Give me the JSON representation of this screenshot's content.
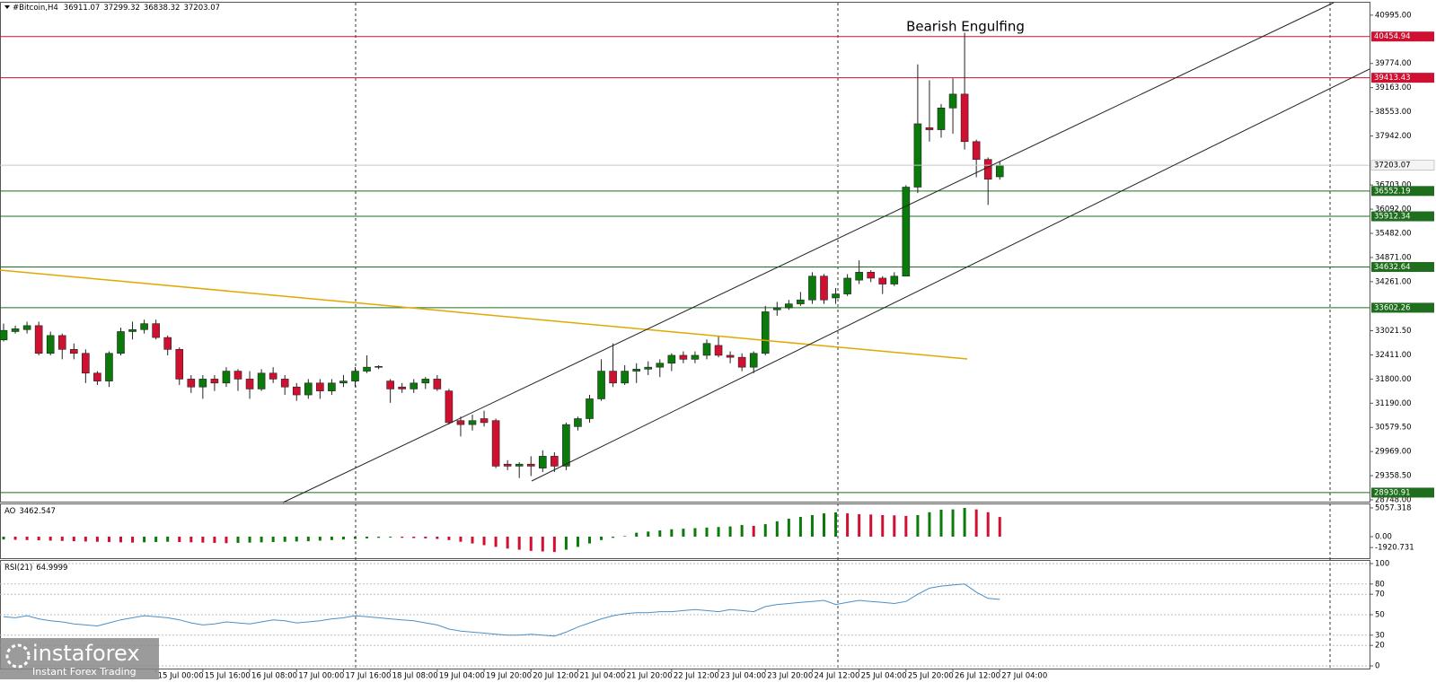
{
  "header": {
    "symbol": "#Bitcoin,H4"
  },
  "logo": {
    "name": "instaforex",
    "tagline": "Instant Forex Trading"
  },
  "chart_data": [
    {
      "type": "candlestick",
      "annotation": "Bearish Engulfing",
      "up_color": "#0a7a0a",
      "down_color": "#d01030",
      "categories": [
        null,
        null,
        null,
        null,
        null,
        null,
        null,
        null,
        null,
        null,
        null,
        null,
        null,
        "15 Jul 00:00",
        null,
        null,
        null,
        "15 Jul 16:00",
        null,
        null,
        null,
        "16 Jul 08:00",
        null,
        null,
        null,
        "17 Jul 00:00",
        null,
        null,
        null,
        "17 Jul 16:00",
        null,
        null,
        null,
        "18 Jul 08:00",
        null,
        null,
        null,
        "19 Jul 04:00",
        null,
        null,
        null,
        "19 Jul 20:00",
        null,
        null,
        null,
        "20 Jul 12:00",
        null,
        null,
        null,
        "21 Jul 04:00",
        null,
        null,
        null,
        "21 Jul 20:00",
        null,
        null,
        null,
        "22 Jul 12:00",
        null,
        null,
        null,
        "23 Jul 04:00",
        null,
        null,
        null,
        "23 Jul 20:00",
        null,
        null,
        null,
        "24 Jul 12:00",
        null,
        null,
        null,
        "25 Jul 04:00",
        null,
        null,
        null,
        "25 Jul 20:00",
        null,
        null,
        null,
        "26 Jul 12:00",
        null,
        null,
        null,
        "27 Jul 04:00"
      ],
      "open": [
        32790,
        33000,
        33050,
        33150,
        32450,
        32900,
        32550,
        32450,
        31950,
        31750,
        32450,
        33000,
        33050,
        33200,
        32850,
        32550,
        31800,
        31600,
        31800,
        31700,
        32000,
        31800,
        31550,
        31950,
        31800,
        31600,
        31400,
        31700,
        31500,
        31700,
        31750,
        32000,
        32100,
        31750,
        31600,
        31550,
        31700,
        31800,
        31500,
        30750,
        30650,
        30800,
        30750,
        29650,
        29600,
        29650,
        29550,
        29850,
        29600,
        30600,
        30800,
        31300,
        32000,
        31700,
        32000,
        32050,
        32100,
        32200,
        32400,
        32300,
        32400,
        32650,
        32400,
        32350,
        32100,
        32450,
        33550,
        33600,
        33700,
        33800,
        34400,
        33850,
        33950,
        34300,
        34500,
        34350,
        34200,
        34400,
        36650,
        38150,
        38100,
        38650,
        39000,
        37800,
        37350,
        36911.07
      ],
      "close": [
        33030,
        33070,
        33150,
        32450,
        32900,
        32550,
        32450,
        31950,
        31750,
        32450,
        33000,
        33050,
        33200,
        32850,
        32550,
        31800,
        31600,
        31800,
        31700,
        32000,
        31800,
        31550,
        31950,
        31800,
        31600,
        31400,
        31700,
        31500,
        31700,
        31750,
        32000,
        32100,
        32120,
        31550,
        31550,
        31700,
        31800,
        31550,
        30700,
        30650,
        30750,
        30700,
        29600,
        29600,
        29650,
        29600,
        29850,
        29600,
        30650,
        30800,
        31300,
        32000,
        31700,
        32000,
        32050,
        32100,
        32200,
        32400,
        32300,
        32400,
        32700,
        32400,
        32350,
        32100,
        32450,
        33500,
        33600,
        33700,
        33800,
        34400,
        33800,
        33950,
        34350,
        34500,
        34350,
        34200,
        34400,
        36650,
        38250,
        38100,
        38650,
        39000,
        37800,
        37350,
        36850,
        37203.07
      ],
      "high": [
        33200,
        33150,
        33250,
        33250,
        33000,
        32950,
        32700,
        32550,
        32000,
        32500,
        33100,
        33250,
        33300,
        33300,
        32900,
        32600,
        31900,
        31900,
        31900,
        32100,
        32050,
        32000,
        32050,
        32100,
        31900,
        31700,
        31800,
        31800,
        31800,
        31900,
        32100,
        32400,
        32150,
        31800,
        31700,
        31800,
        31850,
        31900,
        31550,
        30850,
        30900,
        31000,
        30800,
        29750,
        29700,
        29850,
        30000,
        29950,
        30700,
        30850,
        31400,
        32300,
        32700,
        32150,
        32200,
        32250,
        32300,
        32450,
        32500,
        32500,
        32800,
        32900,
        32500,
        32450,
        32500,
        33650,
        33750,
        33800,
        34000,
        34500,
        34450,
        34100,
        34450,
        34800,
        34550,
        34400,
        34500,
        36700,
        39750,
        39350,
        38750,
        39400,
        40550,
        37850,
        37400,
        37299.32
      ],
      "low": [
        32750,
        32950,
        32950,
        32400,
        32400,
        32300,
        32300,
        31700,
        31650,
        31600,
        32400,
        32800,
        32950,
        32800,
        32400,
        31650,
        31450,
        31300,
        31500,
        31600,
        31500,
        31300,
        31500,
        31700,
        31400,
        31250,
        31300,
        31300,
        31400,
        31600,
        31600,
        31950,
        32050,
        31200,
        31450,
        31450,
        31550,
        31500,
        30650,
        30350,
        30500,
        30600,
        29550,
        29500,
        29300,
        29350,
        29450,
        29450,
        29500,
        30500,
        30700,
        31250,
        31600,
        31650,
        31700,
        31900,
        31850,
        32000,
        32200,
        32200,
        32300,
        32350,
        32200,
        32000,
        31950,
        32400,
        33400,
        33550,
        33650,
        33700,
        33700,
        33700,
        33900,
        34200,
        34250,
        33950,
        34150,
        34400,
        36500,
        37800,
        37900,
        38000,
        37600,
        36900,
        36200,
        36838.32
      ],
      "ylim": [
        28680,
        41310
      ],
      "yticks": [
        {
          "value": 40995,
          "label": "40995.00"
        },
        {
          "value": 39774,
          "label": "39774.00"
        },
        {
          "value": 39163,
          "label": "39163.00"
        },
        {
          "value": 38553,
          "label": "38553.00"
        },
        {
          "value": 37942,
          "label": "37942.00"
        },
        {
          "value": 36703,
          "label": "36703.00"
        },
        {
          "value": 36092,
          "label": "36092.00"
        },
        {
          "value": 35482,
          "label": "35482.00"
        },
        {
          "value": 34871,
          "label": "34871.00"
        },
        {
          "value": 34261,
          "label": "34261.00"
        },
        {
          "value": 33021.5,
          "label": "33021.50"
        },
        {
          "value": 32411,
          "label": "32411.00"
        },
        {
          "value": 31800,
          "label": "31800.00"
        },
        {
          "value": 31190,
          "label": "31190.00"
        },
        {
          "value": 30579.5,
          "label": "30579.50"
        },
        {
          "value": 29969,
          "label": "29969.00"
        },
        {
          "value": 29358.5,
          "label": "29358.50"
        },
        {
          "value": 28748,
          "label": "28748.00"
        }
      ],
      "levels": [
        {
          "value": 40454.94,
          "color": "#d01030"
        },
        {
          "value": 39413.43,
          "color": "#d01030"
        },
        {
          "value": 36552.19,
          "color": "#1e6e1e"
        },
        {
          "value": 35912.34,
          "color": "#1e6e1e"
        },
        {
          "value": 34632.64,
          "color": "#1e6e1e"
        },
        {
          "value": 33602.26,
          "color": "#1e6e1e"
        },
        {
          "value": 28930.91,
          "color": "#1e6e1e"
        }
      ]
    },
    {
      "type": "bar",
      "title": "AO",
      "up_color": "#0a7a0a",
      "down_color": "#d01030",
      "values": [
        -500,
        -550,
        -600,
        -650,
        -700,
        -750,
        -800,
        -850,
        -900,
        -950,
        -1000,
        -1050,
        -1000,
        -950,
        -900,
        -950,
        -1000,
        -1050,
        -1100,
        -1150,
        -1100,
        -1050,
        -1000,
        -950,
        -900,
        -850,
        -800,
        -700,
        -600,
        -500,
        -400,
        -300,
        -200,
        -150,
        -200,
        -250,
        -300,
        -400,
        -600,
        -900,
        -1200,
        -1500,
        -1800,
        -2100,
        -2300,
        -2500,
        -2600,
        -2700,
        -2300,
        -1800,
        -1200,
        -600,
        -200,
        100,
        700,
        900,
        1100,
        1300,
        1400,
        1500,
        1600,
        1700,
        1800,
        2050,
        1900,
        2200,
        2700,
        3160,
        3480,
        3800,
        4100,
        4270,
        4100,
        3950,
        3900,
        3800,
        3750,
        3650,
        3800,
        4300,
        4750,
        4800,
        5057.318,
        4800,
        4300,
        3462.547
      ],
      "ylim": [
        -3790,
        5690
      ],
      "yticks": [
        5057.318,
        {
          "value": 0,
          "label": "0.00"
        },
        -1920.731
      ]
    },
    {
      "type": "line",
      "title": "RSI(21)",
      "color": "#4a90c8",
      "values": [
        48,
        47,
        49,
        46,
        44,
        43,
        41,
        40,
        39,
        42,
        45,
        47,
        49,
        48,
        47,
        45,
        42,
        40,
        41,
        43,
        42,
        41,
        43,
        45,
        44,
        42,
        43,
        44,
        46,
        47,
        49,
        48,
        47,
        46,
        45,
        44,
        42,
        40,
        36,
        34,
        33,
        32,
        31,
        30,
        30,
        31,
        30,
        29,
        33,
        38,
        42,
        46,
        49,
        51,
        52,
        52,
        53,
        53,
        54,
        55,
        54,
        53,
        55,
        54,
        53,
        58,
        60,
        61,
        62,
        63,
        64,
        60,
        62,
        64,
        63,
        62,
        61,
        63,
        70,
        76,
        78,
        79,
        80,
        72,
        66,
        64.9999
      ],
      "ylim": [
        0,
        100
      ],
      "yticks": [
        100,
        80,
        70,
        50,
        30,
        20,
        0
      ]
    }
  ]
}
